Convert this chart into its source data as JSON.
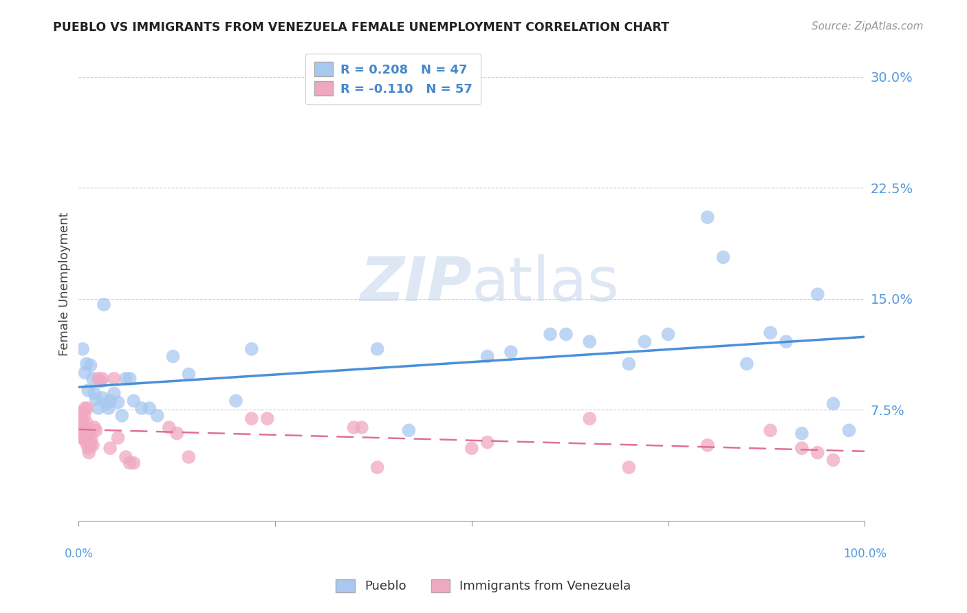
{
  "title": "PUEBLO VS IMMIGRANTS FROM VENEZUELA FEMALE UNEMPLOYMENT CORRELATION CHART",
  "source": "Source: ZipAtlas.com",
  "ylabel": "Female Unemployment",
  "yticks": [
    0.0,
    0.075,
    0.15,
    0.225,
    0.3
  ],
  "ytick_labels": [
    "",
    "7.5%",
    "15.0%",
    "22.5%",
    "30.0%"
  ],
  "xlim": [
    0.0,
    1.0
  ],
  "ylim": [
    0.0,
    0.32
  ],
  "legend_series1_label": "Pueblo",
  "legend_series2_label": "Immigrants from Venezuela",
  "pueblo_color": "#a8c8f0",
  "venezuela_color": "#f0a8c0",
  "trendline_pueblo_color": "#4a90d9",
  "trendline_venezuela_color": "#e07090",
  "watermark_zip": "ZIP",
  "watermark_atlas": "atlas",
  "pueblo_R": 0.208,
  "pueblo_N": 47,
  "venezuela_R": -0.11,
  "venezuela_N": 57,
  "pueblo_x": [
    0.005,
    0.008,
    0.01,
    0.012,
    0.015,
    0.018,
    0.02,
    0.022,
    0.025,
    0.028,
    0.03,
    0.032,
    0.035,
    0.038,
    0.04,
    0.045,
    0.05,
    0.055,
    0.06,
    0.065,
    0.07,
    0.08,
    0.09,
    0.1,
    0.12,
    0.14,
    0.2,
    0.22,
    0.38,
    0.42,
    0.52,
    0.55,
    0.6,
    0.62,
    0.65,
    0.7,
    0.72,
    0.75,
    0.8,
    0.82,
    0.85,
    0.88,
    0.9,
    0.92,
    0.94,
    0.96,
    0.98
  ],
  "pueblo_y": [
    0.116,
    0.1,
    0.106,
    0.088,
    0.105,
    0.096,
    0.086,
    0.082,
    0.076,
    0.094,
    0.083,
    0.146,
    0.079,
    0.076,
    0.081,
    0.086,
    0.08,
    0.071,
    0.096,
    0.096,
    0.081,
    0.076,
    0.076,
    0.071,
    0.111,
    0.099,
    0.081,
    0.116,
    0.116,
    0.061,
    0.111,
    0.114,
    0.126,
    0.126,
    0.121,
    0.106,
    0.121,
    0.126,
    0.205,
    0.178,
    0.106,
    0.127,
    0.121,
    0.059,
    0.153,
    0.079,
    0.061
  ],
  "venezuela_x": [
    0.001,
    0.002,
    0.002,
    0.003,
    0.003,
    0.004,
    0.004,
    0.005,
    0.005,
    0.006,
    0.006,
    0.006,
    0.007,
    0.007,
    0.008,
    0.008,
    0.009,
    0.009,
    0.01,
    0.01,
    0.01,
    0.011,
    0.011,
    0.012,
    0.012,
    0.013,
    0.014,
    0.015,
    0.016,
    0.018,
    0.02,
    0.022,
    0.025,
    0.03,
    0.04,
    0.045,
    0.05,
    0.06,
    0.065,
    0.07,
    0.115,
    0.125,
    0.14,
    0.22,
    0.24,
    0.35,
    0.36,
    0.38,
    0.5,
    0.52,
    0.65,
    0.7,
    0.8,
    0.88,
    0.92,
    0.94,
    0.96
  ],
  "venezuela_y": [
    0.066,
    0.06,
    0.071,
    0.058,
    0.068,
    0.061,
    0.073,
    0.056,
    0.063,
    0.061,
    0.056,
    0.065,
    0.059,
    0.071,
    0.061,
    0.076,
    0.053,
    0.059,
    0.056,
    0.066,
    0.061,
    0.076,
    0.056,
    0.059,
    0.049,
    0.046,
    0.053,
    0.051,
    0.056,
    0.051,
    0.063,
    0.061,
    0.096,
    0.096,
    0.049,
    0.096,
    0.056,
    0.043,
    0.039,
    0.039,
    0.063,
    0.059,
    0.043,
    0.069,
    0.069,
    0.063,
    0.063,
    0.036,
    0.049,
    0.053,
    0.069,
    0.036,
    0.051,
    0.061,
    0.049,
    0.046,
    0.041
  ]
}
